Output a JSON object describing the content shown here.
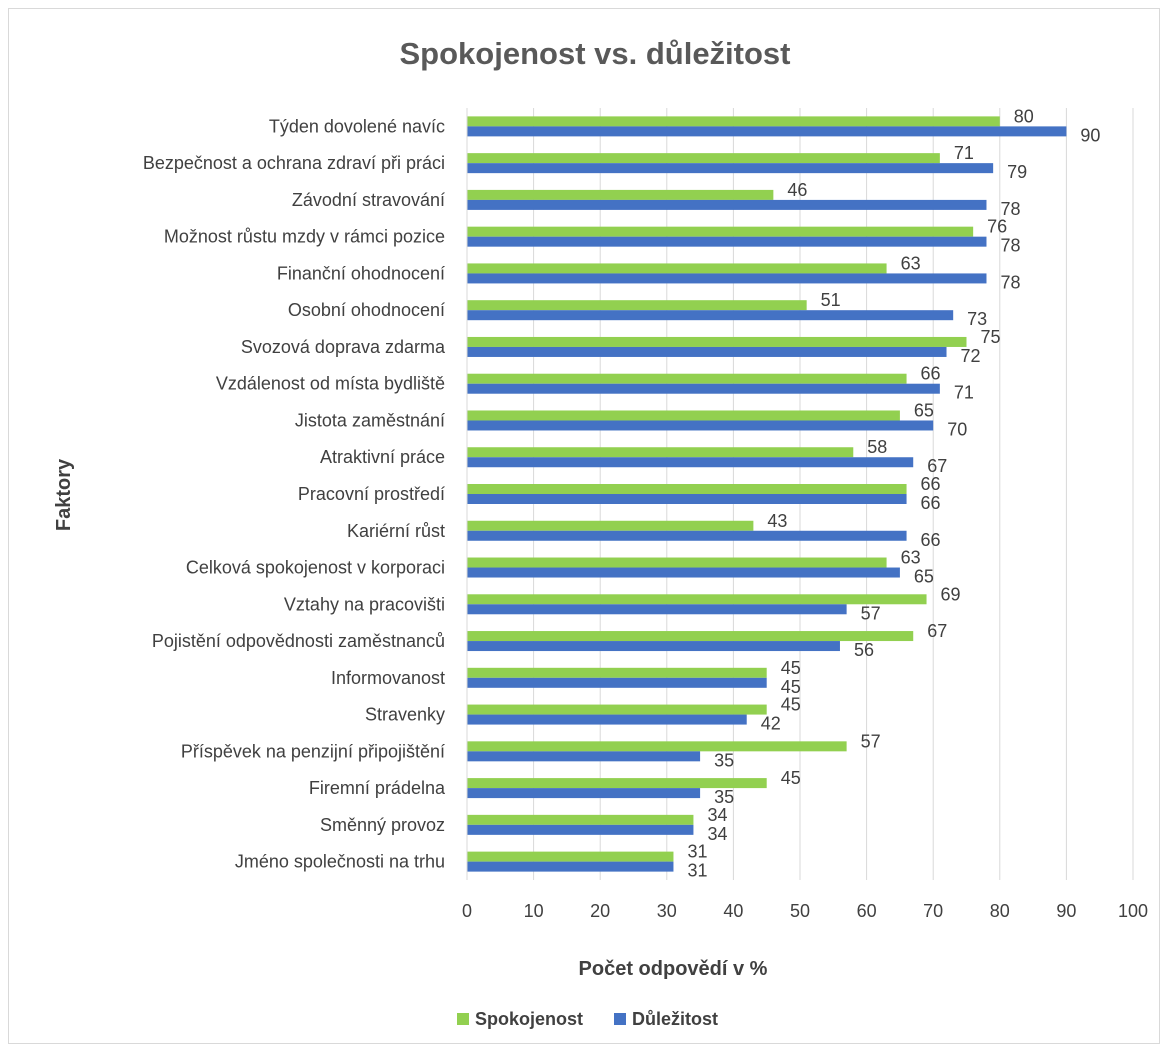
{
  "chart_data": {
    "type": "bar",
    "orientation": "horizontal",
    "title": "Spokojenost vs. důležitost",
    "xlabel": "Počet odpovědí v %",
    "ylabel": "Faktory",
    "xlim": [
      0,
      100
    ],
    "xticks": [
      "0",
      "10",
      "20",
      "30",
      "40",
      "50",
      "60",
      "70",
      "80",
      "90",
      "100"
    ],
    "grid": "vertical",
    "legend_position": "bottom",
    "categories": [
      "Týden dovolené navíc",
      "Bezpečnost a ochrana zdraví při práci",
      "Závodní stravování",
      "Možnost růstu mzdy v rámci pozice",
      "Finanční ohodnocení",
      "Osobní ohodnocení",
      "Svozová doprava zdarma",
      "Vzdálenost od místa bydliště",
      "Jistota zaměstnání",
      "Atraktivní práce",
      "Pracovní prostředí",
      "Kariérní růst",
      "Celková spokojenost v korporaci",
      "Vztahy na pracovišti",
      "Pojistění odpovědnosti zaměstnanců",
      "Informovanost ",
      "Stravenky",
      "Příspěvek na penzijní připojištění",
      "Firemní prádelna",
      "Směnný provoz",
      "Jméno společnosti na trhu"
    ],
    "series": [
      {
        "name": "Spokojenost",
        "color": "#92d050",
        "values": [
          80,
          71,
          46,
          76,
          63,
          51,
          75,
          66,
          65,
          58,
          66,
          43,
          63,
          69,
          67,
          45,
          45,
          57,
          45,
          34,
          31
        ]
      },
      {
        "name": "Důležitost",
        "color": "#4472c4",
        "values": [
          90,
          79,
          78,
          78,
          78,
          73,
          72,
          71,
          70,
          67,
          66,
          66,
          65,
          57,
          56,
          45,
          42,
          35,
          35,
          34,
          31
        ]
      }
    ]
  }
}
